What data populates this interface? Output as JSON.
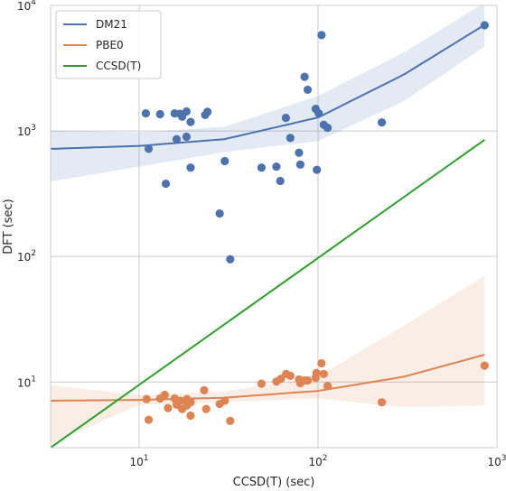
{
  "chart_data": {
    "type": "scatter",
    "title": "",
    "xlabel": "CCSD(T) (sec)",
    "ylabel": "DFT (sec)",
    "x_scale": "log",
    "y_scale": "log",
    "xlim": [
      3.2,
      1000
    ],
    "ylim": [
      3,
      10000
    ],
    "grid": true,
    "legend_position": "top-left",
    "x_ticks": [
      {
        "value": 10,
        "base": "10",
        "exp": "1"
      },
      {
        "value": 100,
        "base": "10",
        "exp": "2"
      },
      {
        "value": 1000,
        "base": "10",
        "exp": "3"
      }
    ],
    "y_ticks": [
      {
        "value": 10,
        "base": "10",
        "exp": "1"
      },
      {
        "value": 100,
        "base": "10",
        "exp": "2"
      },
      {
        "value": 1000,
        "base": "10",
        "exp": "3"
      },
      {
        "value": 10000,
        "base": "10",
        "exp": "4"
      }
    ],
    "series": [
      {
        "name": "DM21",
        "color": "#4c72b0",
        "points": [
          [
            10.9,
            1380
          ],
          [
            11.3,
            720
          ],
          [
            13.1,
            1360
          ],
          [
            14.1,
            380
          ],
          [
            15.8,
            1380
          ],
          [
            16.2,
            860
          ],
          [
            16.9,
            1370
          ],
          [
            17.4,
            1300
          ],
          [
            18.4,
            1430
          ],
          [
            18.4,
            900
          ],
          [
            19.4,
            1180
          ],
          [
            19.4,
            510
          ],
          [
            23.4,
            1340
          ],
          [
            24.1,
            1420
          ],
          [
            28.2,
            220
          ],
          [
            30.1,
            575
          ],
          [
            32.3,
            95
          ],
          [
            48.3,
            510
          ],
          [
            58.5,
            520
          ],
          [
            61.5,
            400
          ],
          [
            66.1,
            1270
          ],
          [
            70.0,
            880
          ],
          [
            78.3,
            670
          ],
          [
            79.6,
            540
          ],
          [
            84.1,
            2700
          ],
          [
            87.5,
            2130
          ],
          [
            97.0,
            1500
          ],
          [
            98.5,
            490
          ],
          [
            100.9,
            1380
          ],
          [
            104.6,
            5800
          ],
          [
            107.6,
            1120
          ],
          [
            113.1,
            1060
          ],
          [
            227.2,
            1170
          ],
          [
            853.0,
            6950
          ]
        ],
        "trend": [
          [
            3.2,
            720
          ],
          [
            10,
            760
          ],
          [
            30,
            860
          ],
          [
            100,
            1280
          ],
          [
            300,
            2800
          ],
          [
            853,
            7000
          ]
        ],
        "band_upper": [
          [
            3.2,
            1010
          ],
          [
            10,
            975
          ],
          [
            30,
            1080
          ],
          [
            100,
            1900
          ],
          [
            300,
            4200
          ],
          [
            853,
            10500
          ]
        ],
        "band_lower": [
          [
            3.2,
            395
          ],
          [
            10,
            520
          ],
          [
            30,
            680
          ],
          [
            100,
            830
          ],
          [
            300,
            1720
          ],
          [
            853,
            4700
          ]
        ]
      },
      {
        "name": "PBE0",
        "color": "#dd8452",
        "points": [
          [
            11.0,
            7.3
          ],
          [
            11.3,
            5.0
          ],
          [
            13.1,
            7.4
          ],
          [
            13.9,
            7.9
          ],
          [
            14.5,
            6.2
          ],
          [
            15.8,
            7.4
          ],
          [
            16.2,
            6.6
          ],
          [
            17.0,
            7.1
          ],
          [
            17.4,
            6.1
          ],
          [
            18.5,
            7.3
          ],
          [
            18.5,
            6.5
          ],
          [
            19.4,
            5.4
          ],
          [
            19.4,
            6.9
          ],
          [
            23.1,
            8.6
          ],
          [
            23.7,
            6.1
          ],
          [
            28.2,
            6.7
          ],
          [
            30.1,
            7.1
          ],
          [
            32.3,
            4.9
          ],
          [
            48.3,
            9.7
          ],
          [
            58.5,
            10.1
          ],
          [
            62.0,
            10.6
          ],
          [
            66.4,
            11.6
          ],
          [
            70.0,
            11.2
          ],
          [
            78.3,
            10.5
          ],
          [
            79.6,
            9.8
          ],
          [
            84.1,
            10.3
          ],
          [
            87.5,
            10.3
          ],
          [
            97.0,
            10.8
          ],
          [
            98.0,
            11.8
          ],
          [
            104.5,
            14.1
          ],
          [
            107.6,
            11.6
          ],
          [
            113.1,
            9.3
          ],
          [
            227.2,
            6.9
          ],
          [
            853.0,
            13.5
          ]
        ],
        "trend": [
          [
            3.2,
            7.1
          ],
          [
            10,
            7.2
          ],
          [
            30,
            7.5
          ],
          [
            100,
            8.5
          ],
          [
            300,
            11.0
          ],
          [
            853,
            16.5
          ]
        ],
        "band_upper": [
          [
            3.2,
            9.4
          ],
          [
            10,
            7.9
          ],
          [
            30,
            8.4
          ],
          [
            100,
            11.0
          ],
          [
            300,
            28.0
          ],
          [
            853,
            70.0
          ]
        ],
        "band_lower": [
          [
            3.2,
            3.2
          ],
          [
            10,
            6.6
          ],
          [
            30,
            6.9
          ],
          [
            100,
            7.4
          ],
          [
            300,
            6.3
          ],
          [
            853,
            6.5
          ]
        ]
      },
      {
        "name": "CCSD(T)",
        "color": "#2ca02c",
        "line": [
          [
            3.2,
            3.0
          ],
          [
            853,
            850
          ]
        ]
      }
    ]
  }
}
